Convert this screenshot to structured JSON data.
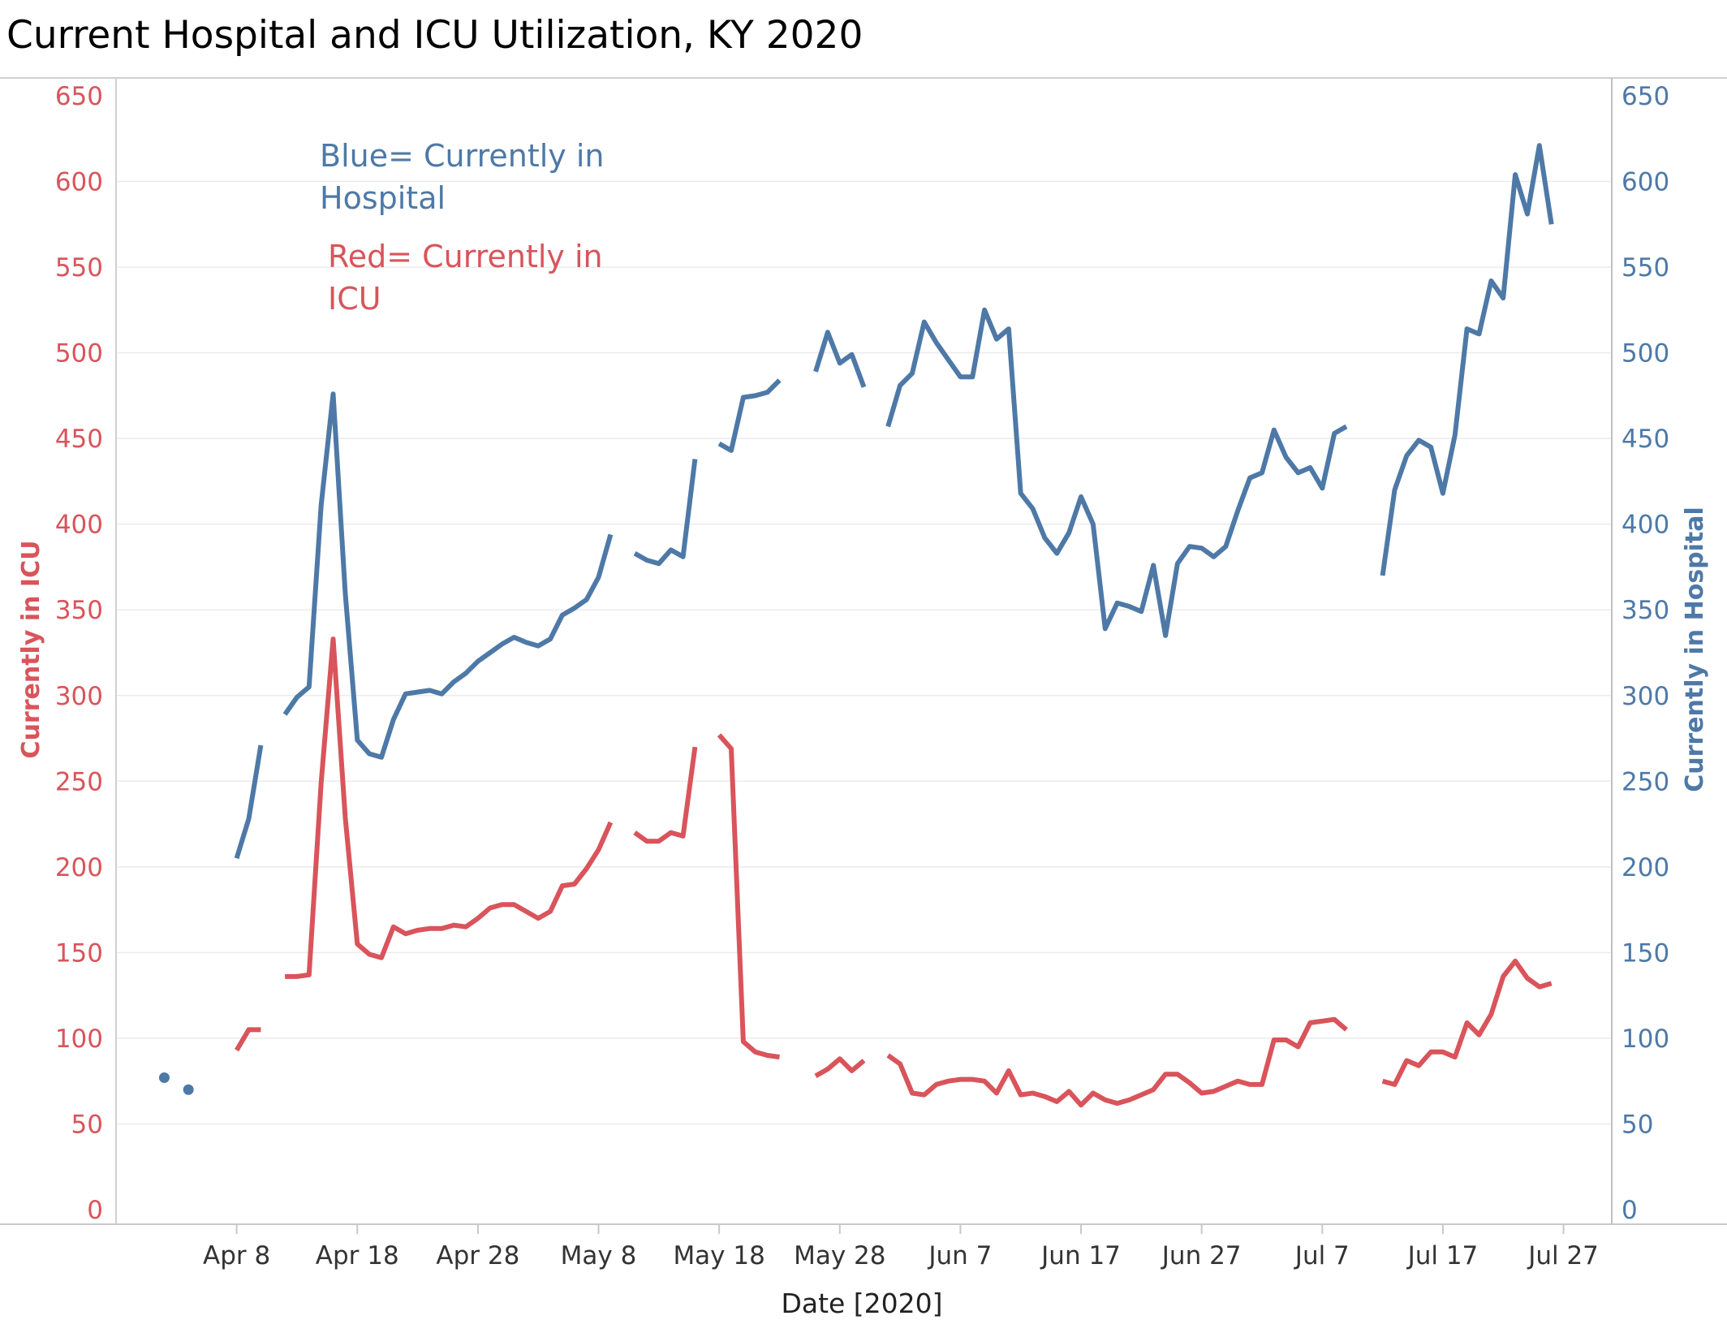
{
  "chart_data": {
    "type": "line",
    "title": "Current Hospital and ICU Utilization,  KY 2020",
    "xlabel": "Date [2020]",
    "ylabel_left": "Currently in ICU",
    "ylabel_right": "Currently in Hospital",
    "ylim": [
      0,
      650
    ],
    "y_ticks": [
      "0",
      "50",
      "100",
      "150",
      "200",
      "250",
      "300",
      "350",
      "400",
      "450",
      "500",
      "550",
      "600",
      "650"
    ],
    "x_range": [
      "2020-03-29",
      "2020-07-31"
    ],
    "x_ticks": [
      {
        "date": "2020-04-08",
        "label": "Apr 8"
      },
      {
        "date": "2020-04-18",
        "label": "Apr 18"
      },
      {
        "date": "2020-04-28",
        "label": "Apr 28"
      },
      {
        "date": "2020-05-08",
        "label": "May 8"
      },
      {
        "date": "2020-05-18",
        "label": "May 18"
      },
      {
        "date": "2020-05-28",
        "label": "May 28"
      },
      {
        "date": "2020-06-07",
        "label": "Jun 7"
      },
      {
        "date": "2020-06-17",
        "label": "Jun 17"
      },
      {
        "date": "2020-06-27",
        "label": "Jun 27"
      },
      {
        "date": "2020-07-07",
        "label": "Jul 7"
      },
      {
        "date": "2020-07-17",
        "label": "Jul 17"
      },
      {
        "date": "2020-07-27",
        "label": "Jul 27"
      }
    ],
    "annotations": [
      {
        "lines": [
          "Blue= Currently in",
          "Hospital"
        ],
        "color": "#4e79a7"
      },
      {
        "lines": [
          "Red= Currently in",
          "ICU"
        ],
        "color": "#d9545b"
      }
    ],
    "grid": true,
    "series": [
      {
        "color": "#4e79a7",
        "axis": "right",
        "segments": [
          [
            [
              "2020-04-02",
              77
            ]
          ],
          [
            [
              "2020-04-04",
              70
            ]
          ],
          [
            [
              "2020-04-08",
              205
            ],
            [
              "2020-04-09",
              228
            ],
            [
              "2020-04-10",
              271
            ]
          ],
          [
            [
              "2020-04-12",
              289
            ],
            [
              "2020-04-13",
              299
            ],
            [
              "2020-04-14",
              305
            ],
            [
              "2020-04-15",
              411
            ],
            [
              "2020-04-16",
              476
            ],
            [
              "2020-04-17",
              360
            ],
            [
              "2020-04-18",
              274
            ],
            [
              "2020-04-19",
              266
            ],
            [
              "2020-04-20",
              264
            ],
            [
              "2020-04-21",
              286
            ],
            [
              "2020-04-22",
              301
            ],
            [
              "2020-04-23",
              302
            ],
            [
              "2020-04-24",
              303
            ],
            [
              "2020-04-25",
              301
            ],
            [
              "2020-04-26",
              308
            ],
            [
              "2020-04-27",
              313
            ],
            [
              "2020-04-28",
              320
            ],
            [
              "2020-04-29",
              325
            ],
            [
              "2020-04-30",
              330
            ],
            [
              "2020-05-01",
              334
            ],
            [
              "2020-05-02",
              331
            ],
            [
              "2020-05-03",
              329
            ],
            [
              "2020-05-04",
              333
            ],
            [
              "2020-05-05",
              347
            ],
            [
              "2020-05-06",
              351
            ],
            [
              "2020-05-07",
              356
            ],
            [
              "2020-05-08",
              369
            ],
            [
              "2020-05-09",
              394
            ]
          ],
          [
            [
              "2020-05-11",
              383
            ],
            [
              "2020-05-12",
              379
            ],
            [
              "2020-05-13",
              377
            ],
            [
              "2020-05-14",
              385
            ],
            [
              "2020-05-15",
              381
            ],
            [
              "2020-05-16",
              438
            ]
          ],
          [
            [
              "2020-05-18",
              447
            ],
            [
              "2020-05-19",
              443
            ],
            [
              "2020-05-20",
              474
            ],
            [
              "2020-05-21",
              475
            ],
            [
              "2020-05-22",
              477
            ],
            [
              "2020-05-23",
              484
            ]
          ],
          [
            [
              "2020-05-26",
              489
            ],
            [
              "2020-05-27",
              512
            ],
            [
              "2020-05-28",
              494
            ],
            [
              "2020-05-29",
              499
            ],
            [
              "2020-05-30",
              480
            ]
          ],
          [
            [
              "2020-06-01",
              457
            ],
            [
              "2020-06-02",
              481
            ],
            [
              "2020-06-03",
              488
            ],
            [
              "2020-06-04",
              518
            ],
            [
              "2020-06-05",
              506
            ],
            [
              "2020-06-06",
              496
            ],
            [
              "2020-06-07",
              486
            ],
            [
              "2020-06-08",
              486
            ],
            [
              "2020-06-09",
              525
            ],
            [
              "2020-06-10",
              508
            ],
            [
              "2020-06-11",
              514
            ],
            [
              "2020-06-12",
              418
            ],
            [
              "2020-06-13",
              409
            ],
            [
              "2020-06-14",
              392
            ],
            [
              "2020-06-15",
              383
            ],
            [
              "2020-06-16",
              395
            ],
            [
              "2020-06-17",
              416
            ],
            [
              "2020-06-18",
              400
            ],
            [
              "2020-06-19",
              339
            ],
            [
              "2020-06-20",
              354
            ],
            [
              "2020-06-21",
              352
            ],
            [
              "2020-06-22",
              349
            ],
            [
              "2020-06-23",
              376
            ],
            [
              "2020-06-24",
              335
            ],
            [
              "2020-06-25",
              377
            ],
            [
              "2020-06-26",
              387
            ],
            [
              "2020-06-27",
              386
            ],
            [
              "2020-06-28",
              381
            ],
            [
              "2020-06-29",
              387
            ],
            [
              "2020-06-30",
              408
            ],
            [
              "2020-07-01",
              427
            ],
            [
              "2020-07-02",
              430
            ],
            [
              "2020-07-03",
              455
            ],
            [
              "2020-07-04",
              439
            ],
            [
              "2020-07-05",
              430
            ],
            [
              "2020-07-06",
              433
            ],
            [
              "2020-07-07",
              421
            ],
            [
              "2020-07-08",
              453
            ],
            [
              "2020-07-09",
              457
            ]
          ],
          [
            [
              "2020-07-12",
              370
            ],
            [
              "2020-07-13",
              420
            ],
            [
              "2020-07-14",
              440
            ],
            [
              "2020-07-15",
              449
            ],
            [
              "2020-07-16",
              445
            ],
            [
              "2020-07-17",
              418
            ],
            [
              "2020-07-18",
              452
            ],
            [
              "2020-07-19",
              514
            ],
            [
              "2020-07-20",
              511
            ],
            [
              "2020-07-21",
              542
            ],
            [
              "2020-07-22",
              532
            ],
            [
              "2020-07-23",
              604
            ],
            [
              "2020-07-24",
              581
            ],
            [
              "2020-07-25",
              621
            ],
            [
              "2020-07-26",
              575
            ]
          ]
        ]
      },
      {
        "color": "#d9545b",
        "axis": "left",
        "segments": [
          [
            [
              "2020-04-08",
              93
            ],
            [
              "2020-04-09",
              105
            ],
            [
              "2020-04-10",
              105
            ]
          ],
          [
            [
              "2020-04-12",
              136
            ],
            [
              "2020-04-13",
              136
            ],
            [
              "2020-04-14",
              137
            ],
            [
              "2020-04-15",
              249
            ],
            [
              "2020-04-16",
              333
            ],
            [
              "2020-04-17",
              229
            ],
            [
              "2020-04-18",
              155
            ],
            [
              "2020-04-19",
              149
            ],
            [
              "2020-04-20",
              147
            ],
            [
              "2020-04-21",
              165
            ],
            [
              "2020-04-22",
              161
            ],
            [
              "2020-04-23",
              163
            ],
            [
              "2020-04-24",
              164
            ],
            [
              "2020-04-25",
              164
            ],
            [
              "2020-04-26",
              166
            ],
            [
              "2020-04-27",
              165
            ],
            [
              "2020-04-28",
              170
            ],
            [
              "2020-04-29",
              176
            ],
            [
              "2020-04-30",
              178
            ],
            [
              "2020-05-01",
              178
            ],
            [
              "2020-05-02",
              174
            ],
            [
              "2020-05-03",
              170
            ],
            [
              "2020-05-04",
              174
            ],
            [
              "2020-05-05",
              189
            ],
            [
              "2020-05-06",
              190
            ],
            [
              "2020-05-07",
              199
            ],
            [
              "2020-05-08",
              210
            ],
            [
              "2020-05-09",
              226
            ]
          ],
          [
            [
              "2020-05-11",
              220
            ],
            [
              "2020-05-12",
              215
            ],
            [
              "2020-05-13",
              215
            ],
            [
              "2020-05-14",
              220
            ],
            [
              "2020-05-15",
              218
            ],
            [
              "2020-05-16",
              270
            ]
          ],
          [
            [
              "2020-05-18",
              277
            ],
            [
              "2020-05-19",
              269
            ],
            [
              "2020-05-20",
              98
            ],
            [
              "2020-05-21",
              92
            ],
            [
              "2020-05-22",
              90
            ],
            [
              "2020-05-23",
              89
            ]
          ],
          [
            [
              "2020-05-26",
              78
            ],
            [
              "2020-05-27",
              82
            ],
            [
              "2020-05-28",
              88
            ],
            [
              "2020-05-29",
              81
            ],
            [
              "2020-05-30",
              87
            ]
          ],
          [
            [
              "2020-06-01",
              90
            ],
            [
              "2020-06-02",
              85
            ],
            [
              "2020-06-03",
              68
            ],
            [
              "2020-06-04",
              67
            ],
            [
              "2020-06-05",
              73
            ],
            [
              "2020-06-06",
              75
            ],
            [
              "2020-06-07",
              76
            ],
            [
              "2020-06-08",
              76
            ],
            [
              "2020-06-09",
              75
            ],
            [
              "2020-06-10",
              68
            ],
            [
              "2020-06-11",
              81
            ],
            [
              "2020-06-12",
              67
            ],
            [
              "2020-06-13",
              68
            ],
            [
              "2020-06-14",
              66
            ],
            [
              "2020-06-15",
              63
            ],
            [
              "2020-06-16",
              69
            ],
            [
              "2020-06-17",
              61
            ],
            [
              "2020-06-18",
              68
            ],
            [
              "2020-06-19",
              64
            ],
            [
              "2020-06-20",
              62
            ],
            [
              "2020-06-21",
              64
            ],
            [
              "2020-06-22",
              67
            ],
            [
              "2020-06-23",
              70
            ],
            [
              "2020-06-24",
              79
            ],
            [
              "2020-06-25",
              79
            ],
            [
              "2020-06-26",
              74
            ],
            [
              "2020-06-27",
              68
            ],
            [
              "2020-06-28",
              69
            ],
            [
              "2020-06-29",
              72
            ],
            [
              "2020-06-30",
              75
            ],
            [
              "2020-07-01",
              73
            ],
            [
              "2020-07-02",
              73
            ],
            [
              "2020-07-03",
              99
            ],
            [
              "2020-07-04",
              99
            ],
            [
              "2020-07-05",
              95
            ],
            [
              "2020-07-06",
              109
            ],
            [
              "2020-07-07",
              110
            ],
            [
              "2020-07-08",
              111
            ],
            [
              "2020-07-09",
              105
            ]
          ],
          [
            [
              "2020-07-12",
              75
            ],
            [
              "2020-07-13",
              73
            ],
            [
              "2020-07-14",
              87
            ],
            [
              "2020-07-15",
              84
            ],
            [
              "2020-07-16",
              92
            ],
            [
              "2020-07-17",
              92
            ],
            [
              "2020-07-18",
              89
            ],
            [
              "2020-07-19",
              109
            ],
            [
              "2020-07-20",
              102
            ],
            [
              "2020-07-21",
              114
            ],
            [
              "2020-07-22",
              136
            ],
            [
              "2020-07-23",
              145
            ],
            [
              "2020-07-24",
              135
            ],
            [
              "2020-07-25",
              130
            ],
            [
              "2020-07-26",
              132
            ]
          ]
        ]
      }
    ]
  }
}
